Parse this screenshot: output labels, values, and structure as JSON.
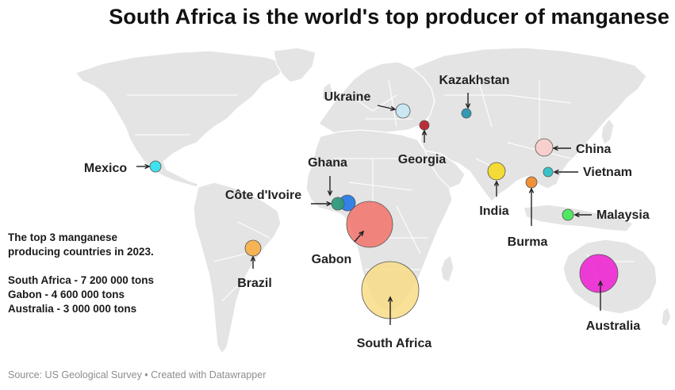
{
  "title": "South Africa is the world's top producer of manganese",
  "note": {
    "intro_line1": "The top 3 manganese",
    "intro_line2": "producing countries in 2023.",
    "stats": [
      "South Africa - 7 200 000 tons",
      "Gabon - 4 600 000 tons",
      "Australia - 3 000 000 tons"
    ]
  },
  "source": "Source: US Geological Survey • Created with Datawrapper",
  "colors": {
    "land": "#e4e4e4",
    "border": "#ffffff",
    "label": "#222222"
  },
  "countries": [
    {
      "name": "South Africa",
      "production_tons": 7200000,
      "color": "#f9dc86"
    },
    {
      "name": "Gabon",
      "production_tons": 4600000,
      "color": "#f2726a"
    },
    {
      "name": "Australia",
      "production_tons": 3000000,
      "color": "#ee1cd2"
    },
    {
      "name": "China",
      "color": "#f8cdcb"
    },
    {
      "name": "Ghana",
      "color": "#2b7be6"
    },
    {
      "name": "India",
      "color": "#f4d92b"
    },
    {
      "name": "Brazil",
      "color": "#f7b04d"
    },
    {
      "name": "Ukraine",
      "color": "#c7e8f2"
    },
    {
      "name": "Malaysia",
      "color": "#47e85b"
    },
    {
      "name": "Mexico",
      "color": "#35e2ef"
    },
    {
      "name": "Vietnam",
      "color": "#2ec0c5"
    },
    {
      "name": "Côte d'Ivoire",
      "color": "#2f9a7c"
    },
    {
      "name": "Burma",
      "color": "#f08a2b"
    },
    {
      "name": "Kazakhstan",
      "color": "#2a95b0"
    },
    {
      "name": "Georgia",
      "color": "#b7242c"
    }
  ]
}
